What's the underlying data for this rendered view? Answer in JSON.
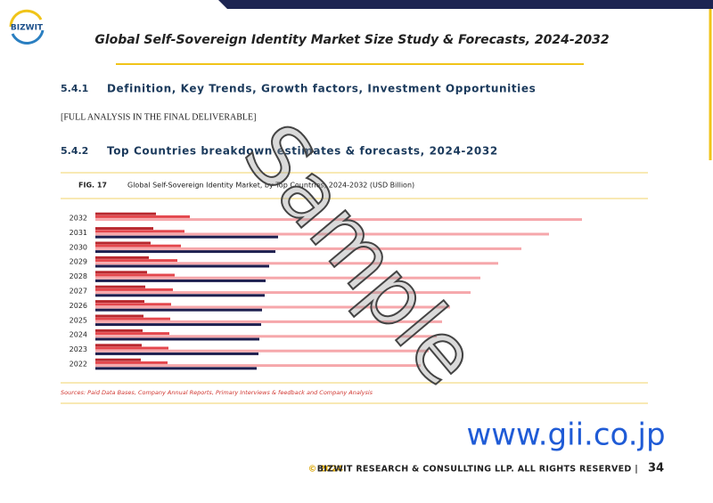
{
  "header": {
    "logo": "BIZWIT",
    "title": "Global Self-Sovereign Identity Market Size Study & Forecasts, 2024-2032"
  },
  "sections": [
    {
      "number": "5.4.1",
      "heading": "Definition, Key Trends, Growth factors, Investment Opportunities",
      "text": "[FULL ANALYSIS IN THE FINAL DELIVERABLE]"
    },
    {
      "number": "5.4.2",
      "heading": "Top Countries breakdown estimates & forecasts, 2024-2032"
    }
  ],
  "figure": {
    "label": "FIG. 17",
    "caption": "Global Self-Sovereign Identity Market, by Top Countries, 2024-2032 (USD Billion)",
    "source": "Sources: Paid Data Bases, Company Annual Reports, Primary Interviews & feedback and Company Analysis"
  },
  "chart_data": {
    "type": "bar",
    "orientation": "horizontal",
    "categories": [
      "2032",
      "2031",
      "2030",
      "2029",
      "2028",
      "2027",
      "2026",
      "2025",
      "2024",
      "2023",
      "2022"
    ],
    "series": [
      {
        "color": "#b8282e",
        "values": [
          68,
          65,
          62,
          60,
          58,
          56,
          55,
          54,
          53,
          52,
          51
        ]
      },
      {
        "color": "#e4474d",
        "values": [
          106,
          100,
          96,
          92,
          89,
          87,
          85,
          84,
          83,
          82,
          81
        ]
      },
      {
        "color": "#f6a7ab",
        "values": [
          546,
          509,
          478,
          452,
          432,
          421,
          398,
          389,
          383,
          374,
          365
        ]
      },
      {
        "color": "#1d1f4f",
        "values": [
          null,
          205,
          202,
          195,
          191,
          190,
          187,
          186,
          184,
          183,
          181
        ]
      }
    ],
    "xlim": [
      0,
      600
    ]
  },
  "watermark": "Sample",
  "site": "www.gii.co.jp",
  "footer": {
    "year": "© 2024",
    "copyright": "BIZWIT RESEARCH & CONSULLTING LLP. ALL RIGHTS RESERVED |",
    "page": "34"
  }
}
